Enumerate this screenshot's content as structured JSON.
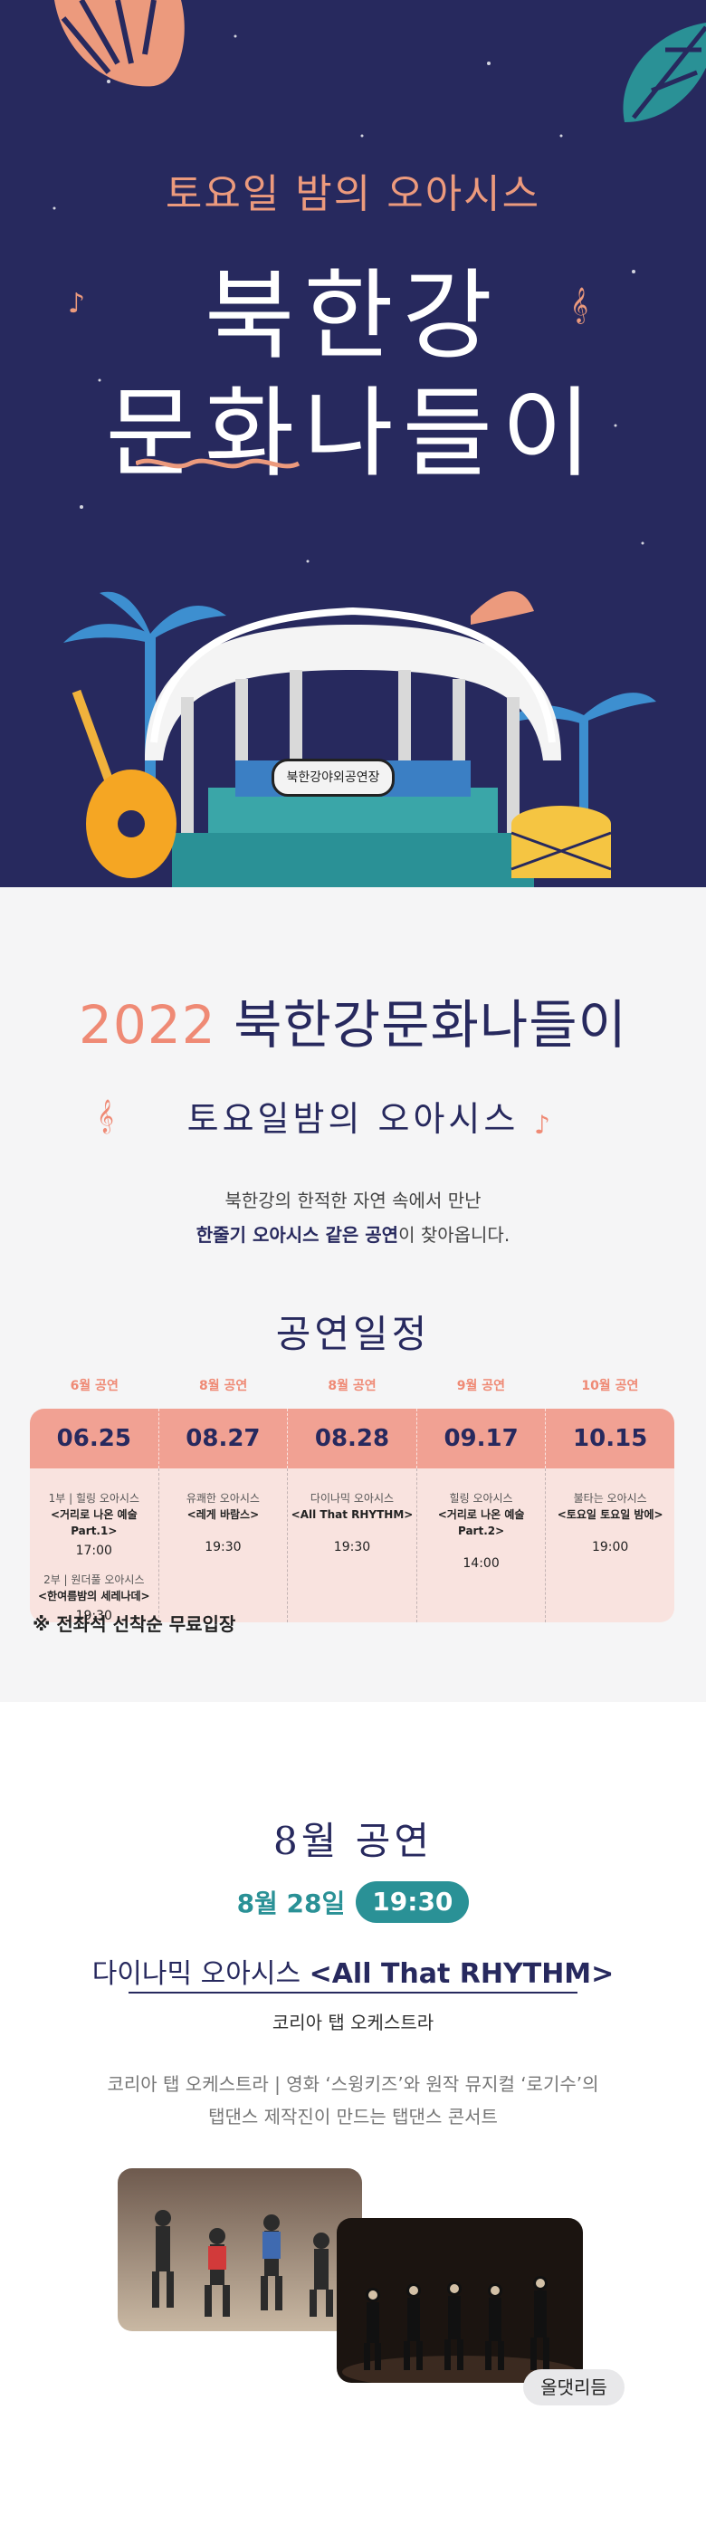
{
  "hero": {
    "subtitle": "토요일 밤의 오아시스",
    "title_line1": "북한강",
    "title_line2": "문화나들이",
    "stage_sign": "북한강야외공연장"
  },
  "intro": {
    "year": "2022",
    "title": "북한강문화나들이",
    "tagline": "토요일밤의 오아시스",
    "line1": "북한강의 한적한 자연 속에서 만난",
    "line2_bold": "한줄기 오아시스 같은 공연",
    "line2_rest": "이 찾아옵니다."
  },
  "schedule": {
    "title": "공연일정",
    "columns": [
      {
        "month": "6월 공연",
        "date": "06.25",
        "entries": [
          {
            "label": "1부 | 힐링 오아시스",
            "title": "<거리로 나온 예술 Part.1>",
            "time": "17:00"
          },
          {
            "label": "2부 | 원더풀 오아시스",
            "title": "<한여름밤의 세레나데>",
            "time": "19:30"
          }
        ]
      },
      {
        "month": "8월 공연",
        "date": "08.27",
        "entries": [
          {
            "label": "유쾌한 오아시스",
            "title": "<레게 바람스>",
            "time": "19:30"
          }
        ]
      },
      {
        "month": "8월 공연",
        "date": "08.28",
        "entries": [
          {
            "label": "다이나믹 오아시스",
            "title": "<All That RHYTHM>",
            "time": "19:30"
          }
        ]
      },
      {
        "month": "9월 공연",
        "date": "09.17",
        "entries": [
          {
            "label": "힐링 오아시스",
            "title": "<거리로 나온 예술 Part.2>",
            "time": "14:00"
          }
        ]
      },
      {
        "month": "10월 공연",
        "date": "10.15",
        "entries": [
          {
            "label": "불타는 오아시스",
            "title": "<토요일 토요일 밤에>",
            "time": "19:00"
          }
        ]
      }
    ],
    "note": "※ 전좌석 선착순 무료입장"
  },
  "august": {
    "title": "8월 공연",
    "date": "8월 28일",
    "time": "19:30",
    "show_prefix": "다이나믹 오아시스 ",
    "show_name": "<All That RHYTHM>",
    "troupe": "코리아 탭 오케스트라",
    "desc_line1": "코리아 탭 오케스트라 | 영화 ‘스윙키즈’와 원작 뮤지컬 ‘로기수’의",
    "desc_line2": "탭댄스 제작진이 만드는 탭댄스 콘서트",
    "photo_caption": "올댓리듬"
  },
  "colors": {
    "navy": "#27295e",
    "coral": "#ef8a75",
    "teal": "#2a9196",
    "schedule_header": "#f1a193",
    "schedule_body": "#f9e3df"
  }
}
